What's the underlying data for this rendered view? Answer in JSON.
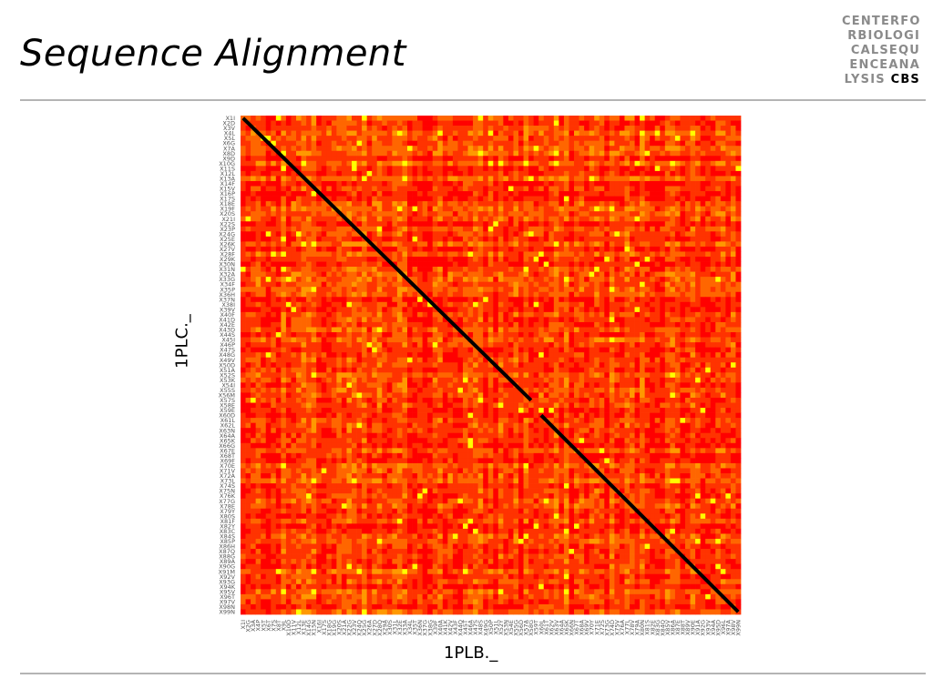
{
  "slide": {
    "title": "Sequence Alignment"
  },
  "logo": {
    "lines": [
      "CENTERFO",
      "RBIOLOGI",
      "CALSEQU",
      "ENCEANA"
    ],
    "last_line_prefix": "LYSIS",
    "last_line_brand": "CBS"
  },
  "colors": {
    "low": "#ff0000",
    "mid_low": "#ff3300",
    "mid": "#ff6600",
    "mid_high": "#ff9900",
    "high": "#ffff00",
    "path": "#000000"
  },
  "chart_data": {
    "type": "heatmap",
    "title": "",
    "xlabel": "1PLB._",
    "ylabel": "1PLC._",
    "n_cols": 99,
    "n_rows": 99,
    "colormap": "red-orange-yellow",
    "x_tick_labels": [
      "X1I",
      "X2G",
      "X3A",
      "X4P",
      "X5T",
      "X6T",
      "X7S",
      "X8T",
      "X9L",
      "X10D",
      "X11V",
      "X12L",
      "X13E",
      "X14G",
      "X15N",
      "X16I",
      "X17S",
      "X18G",
      "X19G",
      "X20S",
      "X21A",
      "X22G",
      "X23V",
      "X24Q",
      "X25G",
      "X26A",
      "X27D",
      "X28Q",
      "X29A",
      "X30S",
      "X31L",
      "X32E",
      "X33A",
      "X34L",
      "X35T",
      "X36N",
      "X37G",
      "X38G",
      "X39F",
      "X40A",
      "X41K",
      "X42V",
      "X43F",
      "X44Q",
      "X45T",
      "X46A",
      "X47S",
      "X48S",
      "X49G",
      "X50P",
      "X51L",
      "X52Y",
      "X53N",
      "X54E",
      "X55G",
      "X56D",
      "X57A",
      "X58G",
      "X59T",
      "X60L",
      "X61T",
      "X62V",
      "X63V",
      "X64A",
      "X65K",
      "X66N",
      "X67T",
      "X68A",
      "X69V",
      "X70Y",
      "X71E",
      "X72S",
      "X73G",
      "X74D",
      "X75V",
      "X76A",
      "X77L",
      "X78V",
      "X79A",
      "X80N",
      "X81S",
      "X82E",
      "X83G",
      "X84Q",
      "X85V",
      "X86A",
      "X87E",
      "X88T",
      "X89V",
      "X90E",
      "X91A",
      "X92G",
      "X93V",
      "X94A",
      "X95D",
      "X96L",
      "X97A",
      "X98V",
      "X99N"
    ],
    "y_tick_labels": [
      "X1I",
      "X2D",
      "X3V",
      "X4L",
      "X5L",
      "X6G",
      "X7A",
      "X8D",
      "X9D",
      "X10G",
      "X11S",
      "X12L",
      "X13A",
      "X14F",
      "X15V",
      "X16P",
      "X17S",
      "X18E",
      "X19F",
      "X20S",
      "X21I",
      "X22S",
      "X23P",
      "X24G",
      "X25E",
      "X26K",
      "X27V",
      "X28F",
      "X29K",
      "X30N",
      "X31N",
      "X32A",
      "X33G",
      "X34F",
      "X35P",
      "X36H",
      "X37N",
      "X38I",
      "X39V",
      "X40F",
      "X41D",
      "X42E",
      "X43D",
      "X44S",
      "X45I",
      "X46P",
      "X47S",
      "X48G",
      "X49V",
      "X50D",
      "X51A",
      "X52S",
      "X53K",
      "X54I",
      "X55S",
      "X56M",
      "X57S",
      "X58E",
      "X59E",
      "X60D",
      "X61L",
      "X62L",
      "X63N",
      "X64A",
      "X65K",
      "X66G",
      "X67E",
      "X68T",
      "X69F",
      "X70E",
      "X71V",
      "X72A",
      "X73L",
      "X74S",
      "X75N",
      "X76K",
      "X77G",
      "X78E",
      "X79Y",
      "X80S",
      "X81F",
      "X82Y",
      "X83C",
      "X84S",
      "X85P",
      "X86H",
      "X87Q",
      "X88G",
      "X89A",
      "X90G",
      "X91M",
      "X92V",
      "X93G",
      "X94K",
      "X95V",
      "X96T",
      "X97V",
      "X98N",
      "X99N"
    ],
    "alignment_path": {
      "segments": [
        {
          "x": [
            1,
            58
          ],
          "y": [
            1,
            57
          ]
        },
        {
          "x": [
            60,
            99
          ],
          "y": [
            60,
            99
          ]
        }
      ]
    },
    "grid": false
  }
}
